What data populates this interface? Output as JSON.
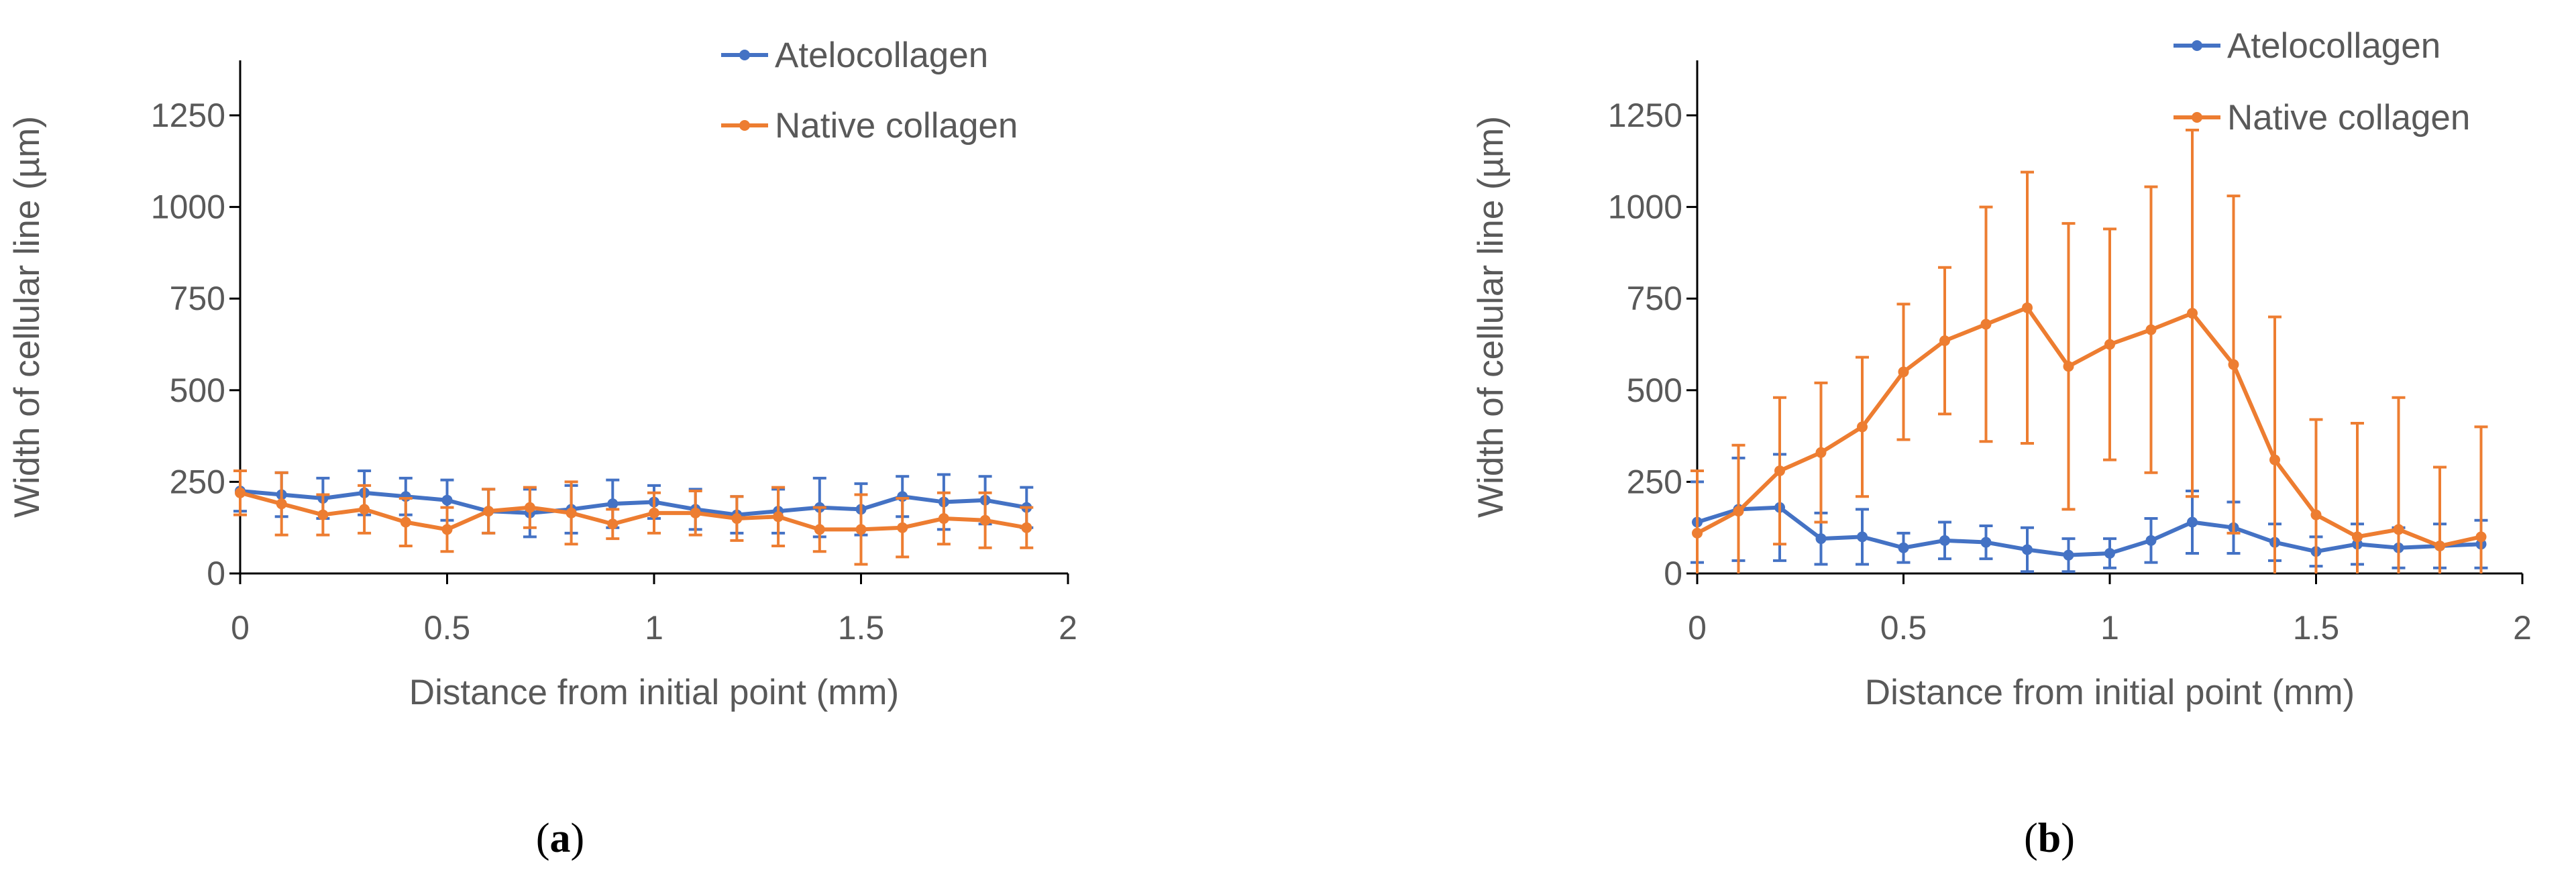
{
  "colors": {
    "atelo": "#4472C4",
    "native": "#ED7D31",
    "axis": "#000000",
    "text": "#595959"
  },
  "chart_data": [
    {
      "type": "line",
      "panel": "a",
      "panel_label": {
        "open": "(",
        "letter": "a",
        "close": ")"
      },
      "xlabel": "Distance from initial point (mm)",
      "ylabel": "Width of cellular line (µm)",
      "xlim": [
        0,
        2
      ],
      "ylim": [
        0,
        1400
      ],
      "xticks": [
        "0",
        "0.5",
        "1",
        "1.5",
        "2"
      ],
      "yticks": [
        "0",
        "250",
        "500",
        "750",
        "1000",
        "1250"
      ],
      "grid": false,
      "legend": "top-right",
      "series": [
        {
          "name": "Atelocollagen",
          "x": [
            0,
            0.1,
            0.2,
            0.3,
            0.4,
            0.5,
            0.6,
            0.7,
            0.8,
            0.9,
            1.0,
            1.1,
            1.2,
            1.3,
            1.4,
            1.5,
            1.6,
            1.7,
            1.8,
            1.9
          ],
          "y": [
            225,
            215,
            205,
            220,
            210,
            200,
            170,
            165,
            175,
            190,
            195,
            175,
            160,
            170,
            180,
            175,
            210,
            195,
            200,
            180
          ],
          "err": [
            55,
            60,
            55,
            60,
            50,
            55,
            60,
            65,
            65,
            65,
            45,
            55,
            50,
            60,
            80,
            70,
            55,
            75,
            65,
            55
          ]
        },
        {
          "name": "Native collagen",
          "x": [
            0,
            0.1,
            0.2,
            0.3,
            0.4,
            0.5,
            0.6,
            0.7,
            0.8,
            0.9,
            1.0,
            1.1,
            1.2,
            1.3,
            1.4,
            1.5,
            1.6,
            1.7,
            1.8,
            1.9
          ],
          "y": [
            220,
            190,
            160,
            175,
            140,
            120,
            170,
            180,
            165,
            135,
            165,
            165,
            150,
            155,
            120,
            120,
            125,
            150,
            145,
            125
          ],
          "err": [
            60,
            85,
            55,
            65,
            65,
            60,
            60,
            55,
            85,
            40,
            55,
            60,
            60,
            80,
            60,
            95,
            80,
            70,
            75,
            55
          ]
        }
      ]
    },
    {
      "type": "line",
      "panel": "b",
      "panel_label": {
        "open": "(",
        "letter": "b",
        "close": ")"
      },
      "xlabel": "Distance from initial point (mm)",
      "ylabel": "Width of cellular line (µm)",
      "xlim": [
        0,
        2
      ],
      "ylim": [
        0,
        1400
      ],
      "xticks": [
        "0",
        "0.5",
        "1",
        "1.5",
        "2"
      ],
      "yticks": [
        "0",
        "250",
        "500",
        "750",
        "1000",
        "1250"
      ],
      "grid": false,
      "legend": "top-right",
      "series": [
        {
          "name": "Atelocollagen",
          "x": [
            0,
            0.1,
            0.2,
            0.3,
            0.4,
            0.5,
            0.6,
            0.7,
            0.8,
            0.9,
            1.0,
            1.1,
            1.2,
            1.3,
            1.4,
            1.5,
            1.6,
            1.7,
            1.8,
            1.9
          ],
          "y": [
            140,
            175,
            180,
            95,
            100,
            70,
            90,
            85,
            65,
            50,
            55,
            90,
            140,
            125,
            85,
            60,
            80,
            70,
            75,
            80
          ],
          "err": [
            110,
            140,
            145,
            70,
            75,
            40,
            50,
            45,
            60,
            45,
            40,
            60,
            85,
            70,
            50,
            40,
            55,
            55,
            60,
            65
          ]
        },
        {
          "name": "Native collagen",
          "x": [
            0,
            0.1,
            0.2,
            0.3,
            0.4,
            0.5,
            0.6,
            0.7,
            0.8,
            0.9,
            1.0,
            1.1,
            1.2,
            1.3,
            1.4,
            1.5,
            1.6,
            1.7,
            1.8,
            1.9
          ],
          "y": [
            110,
            170,
            280,
            330,
            400,
            550,
            635,
            680,
            725,
            565,
            625,
            665,
            710,
            570,
            310,
            160,
            100,
            120,
            75,
            100
          ],
          "err": [
            170,
            180,
            200,
            190,
            190,
            185,
            200,
            320,
            370,
            390,
            315,
            390,
            500,
            460,
            390,
            260,
            310,
            360,
            215,
            300
          ]
        }
      ]
    }
  ]
}
